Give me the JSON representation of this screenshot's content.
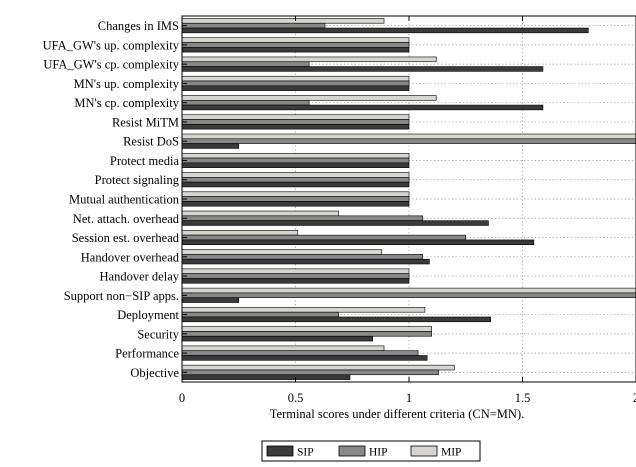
{
  "chart_data": {
    "type": "bar",
    "orientation": "horizontal",
    "xlabel": "Terminal scores under different criteria (CN=MN).",
    "xlim": [
      0,
      2
    ],
    "xticks": [
      0,
      0.5,
      1,
      1.5,
      2
    ],
    "xtick_labels": [
      "0",
      "0.5",
      "1",
      "1.5",
      "2"
    ],
    "grid": true,
    "legend_placement": "bottom-center",
    "categories": [
      "Changes in IMS",
      "UFA_GW's up. complexity",
      "UFA_GW's cp. complexity",
      "MN's up. complexity",
      "MN's cp. complexity",
      "Resist MiTM",
      "Resist DoS",
      "Protect media",
      "Protect signaling",
      "Mutual authentication",
      "Net. attach. overhead",
      "Session est. overhead",
      "Handover overhead",
      "Handover delay",
      "Support non−SIP apps.",
      "Deployment",
      "Security",
      "Performance",
      "Objective"
    ],
    "series": [
      {
        "name": "SIP",
        "color": "#3a3a3a",
        "values": [
          1.79,
          1.0,
          1.59,
          1.0,
          1.59,
          1.0,
          0.25,
          1.0,
          1.0,
          1.0,
          1.35,
          1.55,
          1.09,
          1.0,
          0.25,
          1.36,
          0.84,
          1.08,
          0.74
        ]
      },
      {
        "name": "HIP",
        "color": "#888888",
        "values": [
          0.63,
          1.0,
          0.56,
          1.0,
          0.56,
          1.0,
          2.0,
          1.0,
          1.0,
          1.0,
          1.06,
          1.25,
          1.06,
          1.0,
          2.0,
          0.69,
          1.1,
          1.04,
          1.13
        ]
      },
      {
        "name": "MIP",
        "color": "#d8d5d0",
        "values": [
          0.89,
          1.0,
          1.12,
          1.0,
          1.12,
          1.0,
          2.0,
          1.0,
          1.0,
          1.0,
          0.69,
          0.51,
          0.88,
          1.0,
          2.0,
          1.07,
          1.1,
          0.89,
          1.2
        ]
      }
    ]
  }
}
